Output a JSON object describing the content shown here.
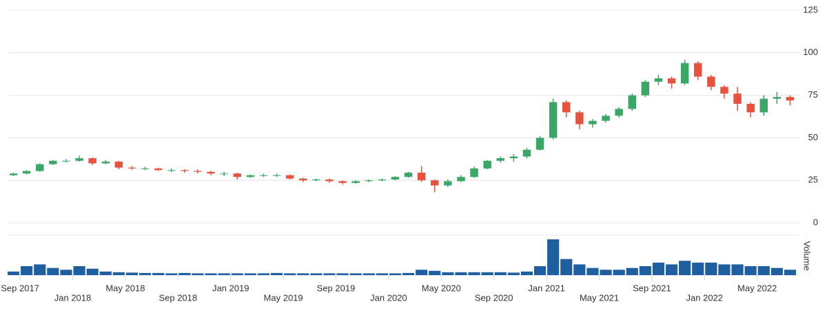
{
  "chart_data": {
    "type": "candlestick",
    "x": [
      "2017-08",
      "2017-09",
      "2017-10",
      "2017-11",
      "2017-12",
      "2018-01",
      "2018-02",
      "2018-03",
      "2018-04",
      "2018-05",
      "2018-06",
      "2018-07",
      "2018-08",
      "2018-09",
      "2018-10",
      "2018-11",
      "2018-12",
      "2019-01",
      "2019-02",
      "2019-03",
      "2019-04",
      "2019-05",
      "2019-06",
      "2019-07",
      "2019-08",
      "2019-09",
      "2019-10",
      "2019-11",
      "2019-12",
      "2020-01",
      "2020-02",
      "2020-03",
      "2020-04",
      "2020-05",
      "2020-06",
      "2020-07",
      "2020-08",
      "2020-09",
      "2020-10",
      "2020-11",
      "2020-12",
      "2021-01",
      "2021-02",
      "2021-03",
      "2021-04",
      "2021-05",
      "2021-06",
      "2021-07",
      "2021-08",
      "2021-09",
      "2021-10",
      "2021-11",
      "2021-12",
      "2022-01",
      "2022-02",
      "2022-03",
      "2022-04",
      "2022-05",
      "2022-06",
      "2022-07"
    ],
    "open": [
      28,
      29,
      30.5,
      34.5,
      36.5,
      36.5,
      38,
      35,
      36,
      32.5,
      32,
      32,
      31,
      31,
      30.5,
      30,
      29,
      29,
      27,
      28,
      28,
      28,
      26,
      25,
      25.5,
      24.5,
      23.5,
      24.5,
      25,
      25.5,
      27,
      29.5,
      25,
      22,
      24.5,
      27,
      32,
      36.5,
      38,
      39,
      43,
      50,
      71,
      65,
      58,
      60,
      63,
      67,
      75,
      83,
      85,
      82,
      94,
      86,
      80,
      76,
      70,
      65,
      73,
      74
    ],
    "high": [
      29.5,
      31,
      35,
      37,
      37.5,
      39.5,
      38.5,
      37,
      36.5,
      33.5,
      33,
      32.5,
      32,
      31.5,
      31.5,
      30.5,
      30,
      29.5,
      28.5,
      29,
      29,
      28.5,
      26.5,
      26,
      26,
      25,
      25,
      25.5,
      26,
      27.5,
      30,
      33.5,
      25.5,
      25.5,
      28,
      33,
      37,
      39,
      40.5,
      44,
      51,
      73,
      72,
      66,
      61,
      64,
      68,
      76,
      84,
      87,
      86,
      96,
      95,
      87,
      81,
      80,
      71,
      75,
      77,
      75
    ],
    "low": [
      27.5,
      28.5,
      30,
      34,
      35.5,
      36,
      34,
      34.5,
      31.5,
      31,
      31,
      30.5,
      30,
      29.5,
      29,
      28,
      27.5,
      25.5,
      26.5,
      27,
      27,
      25.5,
      24,
      24.5,
      23.5,
      22.5,
      23,
      24,
      24.5,
      25,
      26.5,
      24,
      18,
      21,
      24,
      26.5,
      31.5,
      35.5,
      36,
      38,
      42.5,
      49,
      62,
      55,
      56,
      59,
      62,
      66,
      74,
      81,
      79,
      81,
      84,
      78,
      73,
      66,
      62,
      63,
      70,
      69
    ],
    "close": [
      29,
      30.5,
      34.5,
      36.5,
      36.5,
      38,
      35,
      36,
      32.5,
      32,
      32,
      31,
      31,
      30.5,
      30,
      29,
      29,
      27,
      28,
      28,
      28,
      26,
      25,
      25.5,
      24.5,
      23.5,
      24.5,
      25,
      25.5,
      27,
      29.5,
      25,
      22,
      24.5,
      27,
      32,
      36.5,
      38,
      39,
      43,
      50,
      71,
      65,
      58,
      60,
      63,
      67,
      75,
      83,
      85,
      82,
      94,
      86,
      80,
      76,
      70,
      65,
      73,
      74,
      72
    ],
    "up_color": "#3aa767",
    "down_color": "#e8533f",
    "ylim": [
      0,
      125
    ],
    "yticks": [
      0,
      25,
      50,
      75,
      100,
      125
    ],
    "grid": true,
    "xticks": [
      {
        "value": "2017-09",
        "label": "Sep 2017"
      },
      {
        "value": "2018-01",
        "label": "Jan 2018"
      },
      {
        "value": "2018-05",
        "label": "May 2018"
      },
      {
        "value": "2018-09",
        "label": "Sep 2018"
      },
      {
        "value": "2019-01",
        "label": "Jan 2019"
      },
      {
        "value": "2019-05",
        "label": "May 2019"
      },
      {
        "value": "2019-09",
        "label": "Sep 2019"
      },
      {
        "value": "2020-01",
        "label": "Jan 2020"
      },
      {
        "value": "2020-05",
        "label": "May 2020"
      },
      {
        "value": "2020-09",
        "label": "Sep 2020"
      },
      {
        "value": "2021-01",
        "label": "Jan 2021"
      },
      {
        "value": "2021-05",
        "label": "May 2021"
      },
      {
        "value": "2021-09",
        "label": "Sep 2021"
      },
      {
        "value": "2022-01",
        "label": "Jan 2022"
      },
      {
        "value": "2022-05",
        "label": "May 2022"
      }
    ],
    "volume": {
      "label": "Volume",
      "color": "#1f5fa0",
      "values": [
        10,
        25,
        30,
        20,
        15,
        25,
        18,
        10,
        8,
        7,
        6,
        6,
        5,
        6,
        5,
        5,
        5,
        5,
        5,
        5,
        6,
        5,
        5,
        5,
        5,
        5,
        5,
        5,
        5,
        5,
        6,
        15,
        12,
        8,
        8,
        8,
        8,
        8,
        7,
        10,
        25,
        100,
        45,
        30,
        20,
        15,
        15,
        20,
        25,
        35,
        30,
        40,
        35,
        35,
        30,
        30,
        25,
        25,
        20,
        15
      ]
    }
  }
}
